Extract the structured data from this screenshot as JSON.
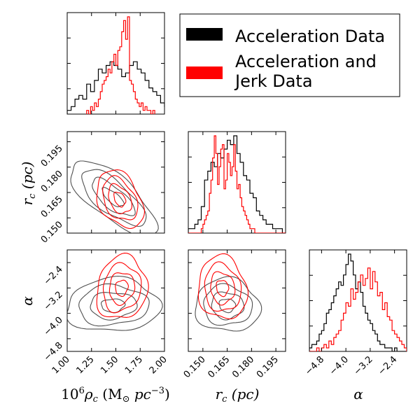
{
  "chart_data": {
    "type": "corner",
    "series": [
      {
        "name": "Acceleration Data",
        "color": "#000000",
        "contour_color": "#505050"
      },
      {
        "name": "Acceleration and Jerk Data",
        "color": "#ff0000"
      }
    ],
    "legend": {
      "placement": "top-right",
      "entries": [
        "Acceleration Data",
        "Acceleration and Jerk Data"
      ],
      "lines": [
        [
          "Acceleration Data"
        ],
        [
          "Acceleration and",
          "Jerk Data"
        ]
      ]
    },
    "parameters": {
      "rho": {
        "label": "10^6 ρc (M⊙ pc^-3)",
        "range": [
          1.0,
          2.0
        ],
        "ticks": [
          "1.00",
          "1.25",
          "1.50",
          "1.75",
          "2.00"
        ],
        "tick_values": [
          1.0,
          1.25,
          1.5,
          1.75,
          2.0
        ]
      },
      "rc": {
        "label": "rc (pc)",
        "range": [
          0.141,
          0.201
        ],
        "ticks": [
          "0.150",
          "0.165",
          "0.180",
          "0.195"
        ],
        "tick_values": [
          0.15,
          0.165,
          0.18,
          0.195
        ]
      },
      "alpha": {
        "label": "α",
        "range": [
          -5.2,
          -2.0
        ],
        "ticks": [
          "−4.8",
          "−4.0",
          "−3.2",
          "−2.4"
        ],
        "tick_values": [
          -4.8,
          -4.0,
          -3.2,
          -2.4
        ]
      }
    },
    "axis_labels": {
      "rho_pre": "10",
      "rho_exp": "6",
      "rho_main": "ρ",
      "rho_sub": "c",
      "rho_unit_open": " (M",
      "rho_unit_sun": "⊙",
      "rho_unit_mid": " pc",
      "rho_unit_exp": "−3",
      "rho_unit_close": ")",
      "rc_main": "r",
      "rc_sub": "c",
      "rc_unit": " (pc)",
      "alpha": "α"
    },
    "histograms": {
      "rho": {
        "black": {
          "edges_start": 1.0,
          "bin_width": 0.04,
          "counts": [
            1,
            2,
            4,
            5,
            4,
            8,
            6,
            9,
            12,
            11,
            13,
            14,
            13,
            12,
            10,
            11,
            13,
            14,
            12,
            11,
            9,
            7,
            6,
            5,
            3,
            2,
            1,
            2,
            1,
            1
          ]
        },
        "red": {
          "edges_start": 1.2,
          "bin_width": 0.02,
          "counts": [
            1,
            0,
            2,
            1,
            3,
            2,
            4,
            6,
            8,
            9,
            10,
            12,
            11,
            14,
            16,
            13,
            17,
            18,
            22,
            25,
            20,
            26,
            9,
            8,
            6,
            4,
            3,
            2,
            3,
            1,
            2,
            1,
            1,
            0,
            1
          ]
        }
      },
      "rc": {
        "black": {
          "edges_start": 0.141,
          "bin_width": 0.002,
          "counts": [
            1,
            1,
            2,
            3,
            6,
            12,
            14,
            16,
            15,
            18,
            17,
            19,
            21,
            20,
            22,
            18,
            16,
            13,
            12,
            9,
            8,
            5,
            4,
            3,
            2,
            2,
            1,
            1,
            1,
            0
          ]
        },
        "red": {
          "edges_start": 0.141,
          "bin_width": 0.001,
          "counts": [
            0,
            0,
            0,
            0,
            0,
            0,
            0,
            0,
            1,
            2,
            3,
            4,
            5,
            9,
            12,
            17,
            22,
            18,
            11,
            15,
            19,
            20,
            10,
            12,
            18,
            16,
            13,
            15,
            20,
            14,
            10,
            11,
            8,
            6,
            5,
            4,
            3,
            2,
            1,
            1,
            1,
            0,
            0,
            0,
            0,
            0,
            0,
            0,
            0,
            0,
            0,
            0,
            0,
            0,
            0,
            0,
            0,
            0,
            0,
            0
          ]
        }
      },
      "alpha": {
        "black": {
          "edges_start": -5.2,
          "bin_width": 0.08,
          "counts": [
            1,
            2,
            2,
            3,
            5,
            6,
            8,
            11,
            12,
            14,
            16,
            18,
            20,
            19,
            22,
            25,
            28,
            26,
            22,
            18,
            20,
            17,
            13,
            11,
            9,
            8,
            6,
            5,
            3,
            2,
            2,
            1,
            1,
            1,
            0,
            1,
            0,
            0,
            0,
            0
          ]
        },
        "red": {
          "edges_start": -5.2,
          "bin_width": 0.08,
          "counts": [
            0,
            0,
            0,
            1,
            0,
            1,
            2,
            1,
            3,
            2,
            4,
            5,
            6,
            9,
            11,
            14,
            13,
            18,
            15,
            17,
            20,
            22,
            19,
            21,
            24,
            18,
            23,
            20,
            16,
            17,
            12,
            14,
            10,
            9,
            6,
            5,
            4,
            3,
            2,
            1
          ]
        }
      }
    },
    "contours_2d": {
      "rc_vs_rho": {
        "black": {
          "center": [
            1.47,
            0.162
          ],
          "spread": [
            0.22,
            0.011
          ],
          "rho": -0.72,
          "levels": [
            0.5,
            1.0,
            1.5,
            2.0
          ]
        },
        "red": {
          "center": [
            1.54,
            0.161
          ],
          "spread": [
            0.12,
            0.0085
          ],
          "rho": -0.35,
          "levels": [
            0.5,
            1.0,
            1.5,
            2.0
          ]
        }
      },
      "alpha_vs_rho": {
        "black": {
          "center": [
            1.47,
            -3.75
          ],
          "spread": [
            0.24,
            0.42
          ],
          "rho": 0.05,
          "levels": [
            0.5,
            1.0,
            1.5,
            2.0
          ]
        },
        "red": {
          "center": [
            1.56,
            -3.2
          ],
          "spread": [
            0.13,
            0.5
          ],
          "rho": 0.1,
          "levels": [
            0.5,
            1.0,
            1.5,
            2.0
          ]
        }
      },
      "alpha_vs_rc": {
        "black": {
          "center": [
            0.165,
            -3.75
          ],
          "spread": [
            0.01,
            0.42
          ],
          "rho": -0.05,
          "levels": [
            0.5,
            1.0,
            1.5,
            2.0
          ]
        },
        "red": {
          "center": [
            0.162,
            -3.2
          ],
          "spread": [
            0.0075,
            0.5
          ],
          "rho": -0.1,
          "levels": [
            0.5,
            1.0,
            1.5,
            2.0
          ]
        }
      }
    }
  }
}
